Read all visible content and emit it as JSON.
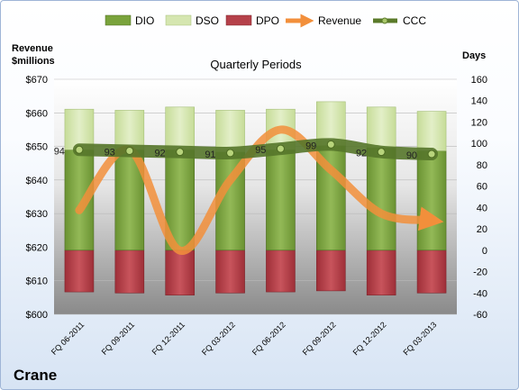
{
  "chart_data": {
    "type": "bar",
    "title": "Quarterly Periods",
    "company": "Crane",
    "y_left_label_line1": "Revenue",
    "y_left_label_line2": "$millions",
    "y_right_label": "Days",
    "categories": [
      "FQ 06-2011",
      "FQ 09-2011",
      "FQ 12-2011",
      "FQ 03-2012",
      "FQ 06-2012",
      "FQ 09-2012",
      "FQ 12-2012",
      "FQ 03-2013"
    ],
    "ylim_left": [
      600,
      670
    ],
    "ylim_right": [
      -60,
      160
    ],
    "left_ticks": [
      "$600",
      "$610",
      "$620",
      "$630",
      "$640",
      "$650",
      "$660",
      "$670"
    ],
    "right_ticks": [
      "-60",
      "-40",
      "-20",
      "0",
      "20",
      "40",
      "60",
      "80",
      "100",
      "120",
      "140",
      "160"
    ],
    "series": [
      {
        "name": "DIO",
        "axis": "right",
        "color": "#7aa33c",
        "values": [
          94,
          94,
          94,
          92,
          94,
          98,
          96,
          93
        ]
      },
      {
        "name": "DSO",
        "axis": "right",
        "color": "#d5e6b0",
        "values": [
          38,
          37,
          40,
          39,
          38,
          41,
          38,
          37
        ]
      },
      {
        "name": "DPO",
        "axis": "right",
        "color": "#b5414a",
        "values": [
          -39,
          -40,
          -42,
          -40,
          -39,
          -38,
          -42,
          -40
        ]
      },
      {
        "name": "Revenue",
        "axis": "left",
        "color": "#f28f3b",
        "values": [
          631,
          649,
          619,
          640,
          655,
          643,
          630,
          628
        ]
      },
      {
        "name": "CCC",
        "axis": "right",
        "color": "#5a7a2a",
        "values": [
          94,
          93,
          92,
          91,
          95,
          99,
          92,
          90
        ]
      }
    ],
    "ccc_labels": [
      "94",
      "93",
      "92",
      "91",
      "95",
      "99",
      "92",
      "90"
    ],
    "legend_position": "top",
    "grid": true
  }
}
